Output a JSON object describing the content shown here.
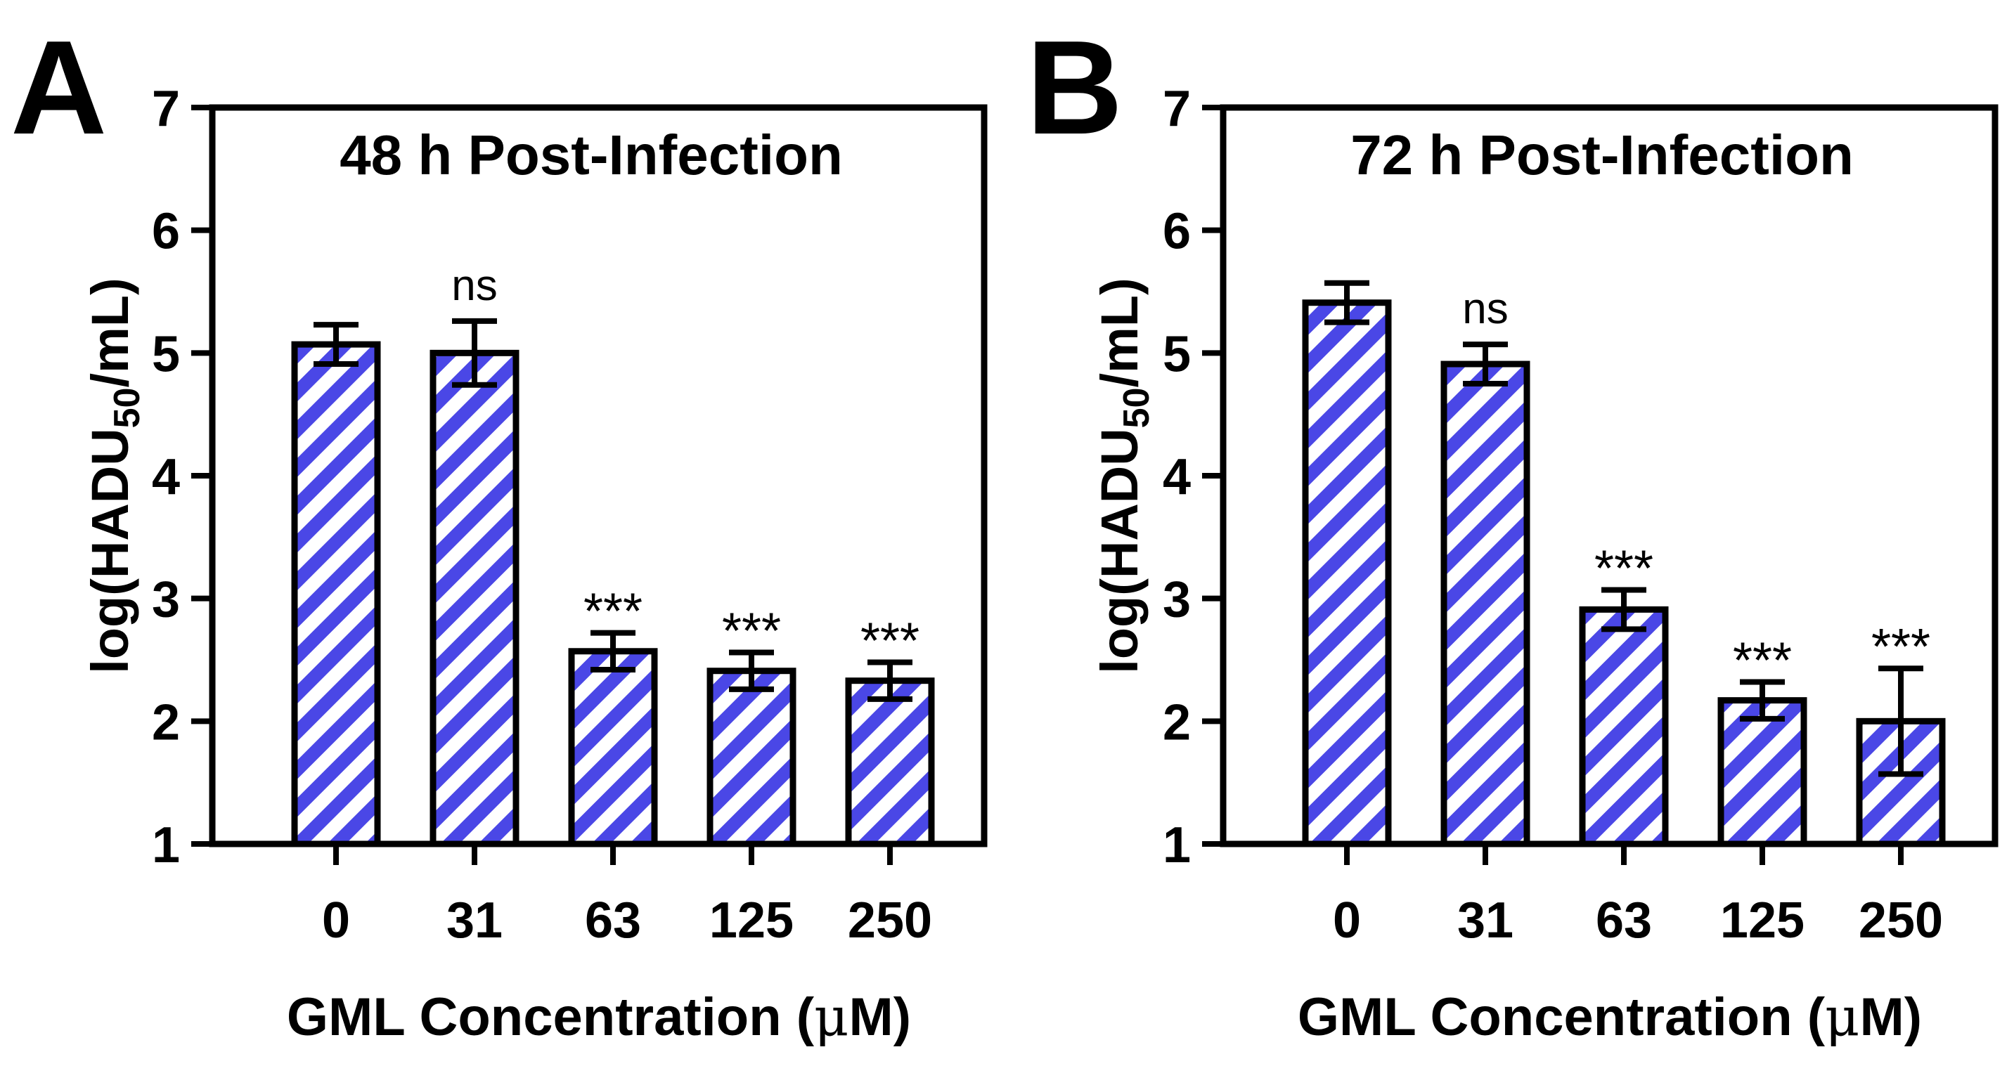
{
  "figure": {
    "stripe_color": "#4a47e6",
    "stripe_bg": "#ffffff",
    "ink": "#000000",
    "mu": "μ"
  },
  "chart_data": [
    {
      "type": "bar",
      "panel_label": "A",
      "title": "48 h Post-Infection",
      "xlabel": "GML Concentration (μM)",
      "xlabel_parts": [
        "GML Concentration (",
        "μ",
        "M)"
      ],
      "ylabel": "log(HADU50/mL)",
      "ylabel_parts": {
        "pre": "log(HADU",
        "sub": "50",
        "post": "/mL)"
      },
      "ylim": [
        1,
        7
      ],
      "yticks": [
        1,
        2,
        3,
        4,
        5,
        6,
        7
      ],
      "categories": [
        "0",
        "31",
        "63",
        "125",
        "250"
      ],
      "values": [
        5.07,
        5.0,
        2.57,
        2.41,
        2.33
      ],
      "errors": [
        0.16,
        0.26,
        0.15,
        0.15,
        0.15
      ],
      "annotations": [
        "",
        "ns",
        "***",
        "***",
        "***"
      ]
    },
    {
      "type": "bar",
      "panel_label": "B",
      "title": "72 h Post-Infection",
      "xlabel": "GML Concentration (μM)",
      "xlabel_parts": [
        "GML Concentration (",
        "μ",
        "M)"
      ],
      "ylabel": "log(HADU50/mL)",
      "ylabel_parts": {
        "pre": "log(HADU",
        "sub": "50",
        "post": "/mL)"
      },
      "ylim": [
        1,
        7
      ],
      "yticks": [
        1,
        2,
        3,
        4,
        5,
        6,
        7
      ],
      "categories": [
        "0",
        "31",
        "63",
        "125",
        "250"
      ],
      "values": [
        5.41,
        4.91,
        2.91,
        2.17,
        2.0
      ],
      "errors": [
        0.16,
        0.16,
        0.16,
        0.15,
        0.43
      ],
      "annotations": [
        "",
        "ns",
        "***",
        "***",
        "***"
      ]
    }
  ]
}
